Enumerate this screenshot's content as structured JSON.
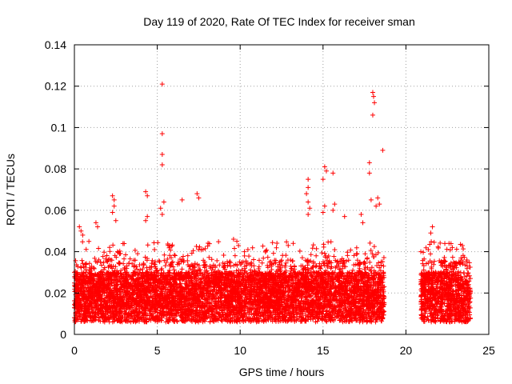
{
  "chart_data": {
    "type": "scatter",
    "title": "Day 119 of 2020, Rate Of TEC Index for receiver sman",
    "xlabel": "GPS time / hours",
    "ylabel": "ROTI / TECUs",
    "xlim": [
      0,
      25
    ],
    "ylim": [
      0,
      0.14
    ],
    "xticks": [
      0,
      5,
      10,
      15,
      20,
      25
    ],
    "xtick_labels": [
      "0",
      "5",
      "10",
      "15",
      "20",
      "25"
    ],
    "yticks": [
      0,
      0.02,
      0.04,
      0.06,
      0.08,
      0.1,
      0.12,
      0.14
    ],
    "ytick_labels": [
      "0",
      "0.02",
      "0.04",
      "0.06",
      "0.08",
      "0.1",
      "0.12",
      "0.14"
    ],
    "grid": true,
    "marker": "+",
    "color": "#ff0000",
    "coverage_segments": [
      [
        0,
        18.7
      ],
      [
        20.9,
        23.9
      ]
    ],
    "outliers": [
      [
        5.3,
        0.121
      ],
      [
        5.3,
        0.097
      ],
      [
        5.3,
        0.087
      ],
      [
        5.3,
        0.082
      ],
      [
        18.0,
        0.117
      ],
      [
        18.05,
        0.115
      ],
      [
        18.1,
        0.112
      ],
      [
        18.0,
        0.106
      ],
      [
        18.6,
        0.089
      ],
      [
        17.8,
        0.083
      ],
      [
        17.8,
        0.078
      ],
      [
        15.1,
        0.081
      ],
      [
        15.2,
        0.079
      ],
      [
        15.6,
        0.078
      ],
      [
        15.0,
        0.075
      ],
      [
        14.1,
        0.075
      ],
      [
        14.1,
        0.071
      ],
      [
        14.0,
        0.068
      ],
      [
        14.1,
        0.064
      ],
      [
        4.3,
        0.069
      ],
      [
        4.4,
        0.067
      ],
      [
        7.4,
        0.068
      ],
      [
        7.5,
        0.066
      ],
      [
        2.3,
        0.067
      ],
      [
        2.4,
        0.065
      ],
      [
        6.5,
        0.065
      ],
      [
        5.4,
        0.064
      ],
      [
        18.3,
        0.066
      ],
      [
        18.4,
        0.063
      ],
      [
        17.9,
        0.065
      ],
      [
        18.2,
        0.062
      ],
      [
        2.4,
        0.062
      ],
      [
        2.3,
        0.059
      ],
      [
        5.2,
        0.061
      ],
      [
        5.3,
        0.058
      ],
      [
        14.2,
        0.061
      ],
      [
        14.1,
        0.058
      ],
      [
        15.1,
        0.062
      ],
      [
        15.0,
        0.059
      ],
      [
        15.7,
        0.063
      ],
      [
        15.6,
        0.06
      ],
      [
        4.4,
        0.057
      ],
      [
        4.3,
        0.055
      ],
      [
        2.5,
        0.055
      ],
      [
        1.3,
        0.054
      ],
      [
        1.4,
        0.052
      ],
      [
        16.3,
        0.057
      ],
      [
        17.3,
        0.058
      ],
      [
        17.4,
        0.054
      ],
      [
        0.3,
        0.052
      ],
      [
        0.4,
        0.05
      ],
      [
        0.5,
        0.048
      ],
      [
        21.6,
        0.052
      ],
      [
        21.5,
        0.049
      ],
      [
        23.4,
        0.043
      ],
      [
        22.6,
        0.044
      ],
      [
        22.8,
        0.042
      ],
      [
        20.9,
        0.04
      ],
      [
        9.6,
        0.046
      ],
      [
        9.8,
        0.045
      ],
      [
        9.9,
        0.043
      ],
      [
        13.2,
        0.044
      ],
      [
        12.9,
        0.043
      ]
    ]
  }
}
